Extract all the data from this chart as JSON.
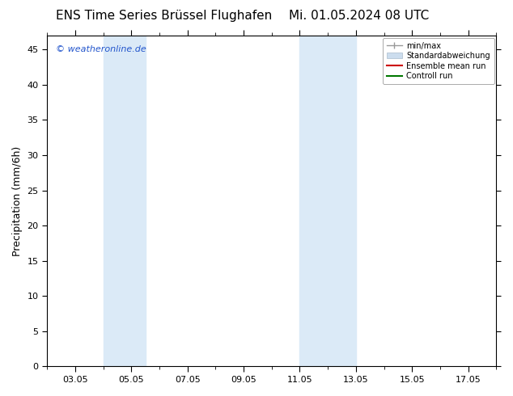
{
  "title_left": "ENS Time Series Brüssel Flughafen",
  "title_right": "Mi. 01.05.2024 08 UTC",
  "ylabel": "Precipitation (mm/6h)",
  "watermark": "© weatheronline.de",
  "ylim": [
    0,
    47
  ],
  "yticks": [
    0,
    5,
    10,
    15,
    20,
    25,
    30,
    35,
    40,
    45
  ],
  "xtick_labels": [
    "03.05",
    "05.05",
    "07.05",
    "09.05",
    "11.05",
    "13.05",
    "15.05",
    "17.05"
  ],
  "xtick_positions": [
    3,
    5,
    7,
    9,
    11,
    13,
    15,
    17
  ],
  "xlim": [
    2.0,
    18.0
  ],
  "shaded_bands": [
    {
      "xmin": 4.0,
      "xmax": 5.5,
      "color": "#dbeaf7"
    },
    {
      "xmin": 11.0,
      "xmax": 13.0,
      "color": "#dbeaf7"
    }
  ],
  "legend_entries": [
    {
      "label": "min/max",
      "color": "#999999",
      "lw": 1.0
    },
    {
      "label": "Standardabweichung",
      "color": "#ccddee",
      "lw": 6
    },
    {
      "label": "Ensemble mean run",
      "color": "#cc0000",
      "lw": 1.5
    },
    {
      "label": "Controll run",
      "color": "#007700",
      "lw": 1.5
    }
  ],
  "bg_color": "#ffffff",
  "plot_bg_color": "#ffffff",
  "title_fontsize": 11,
  "tick_fontsize": 8,
  "label_fontsize": 9,
  "legend_fontsize": 7,
  "watermark_color": "#2255cc",
  "watermark_fontsize": 8
}
